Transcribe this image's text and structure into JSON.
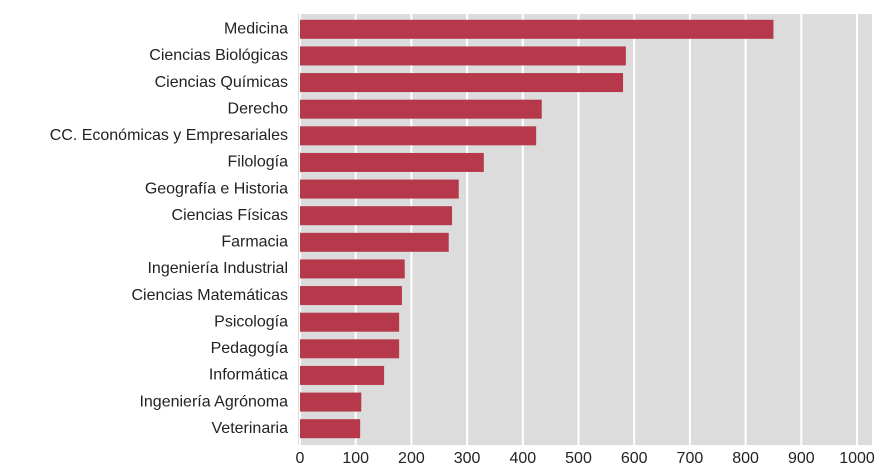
{
  "chart_data": {
    "type": "bar",
    "orientation": "horizontal",
    "categories": [
      "Medicina",
      "Ciencias Biológicas",
      "Ciencias Químicas",
      "Derecho",
      "CC. Económicas y Empresariales",
      "Filología",
      "Geografía e Historia",
      "Ciencias Físicas",
      "Farmacia",
      "Ingeniería Industrial",
      "Ciencias Matemáticas",
      "Psicología",
      "Pedagogía",
      "Informática",
      "Ingeniería Agrónoma",
      "Veterinaria"
    ],
    "values": [
      850,
      585,
      580,
      434,
      424,
      330,
      285,
      273,
      267,
      188,
      183,
      178,
      178,
      151,
      110,
      108
    ],
    "color": "#b5394a",
    "xlim": [
      0,
      1000
    ],
    "xticks": [
      0,
      100,
      200,
      300,
      400,
      500,
      600,
      700,
      800,
      900,
      1000
    ],
    "grid": true
  }
}
